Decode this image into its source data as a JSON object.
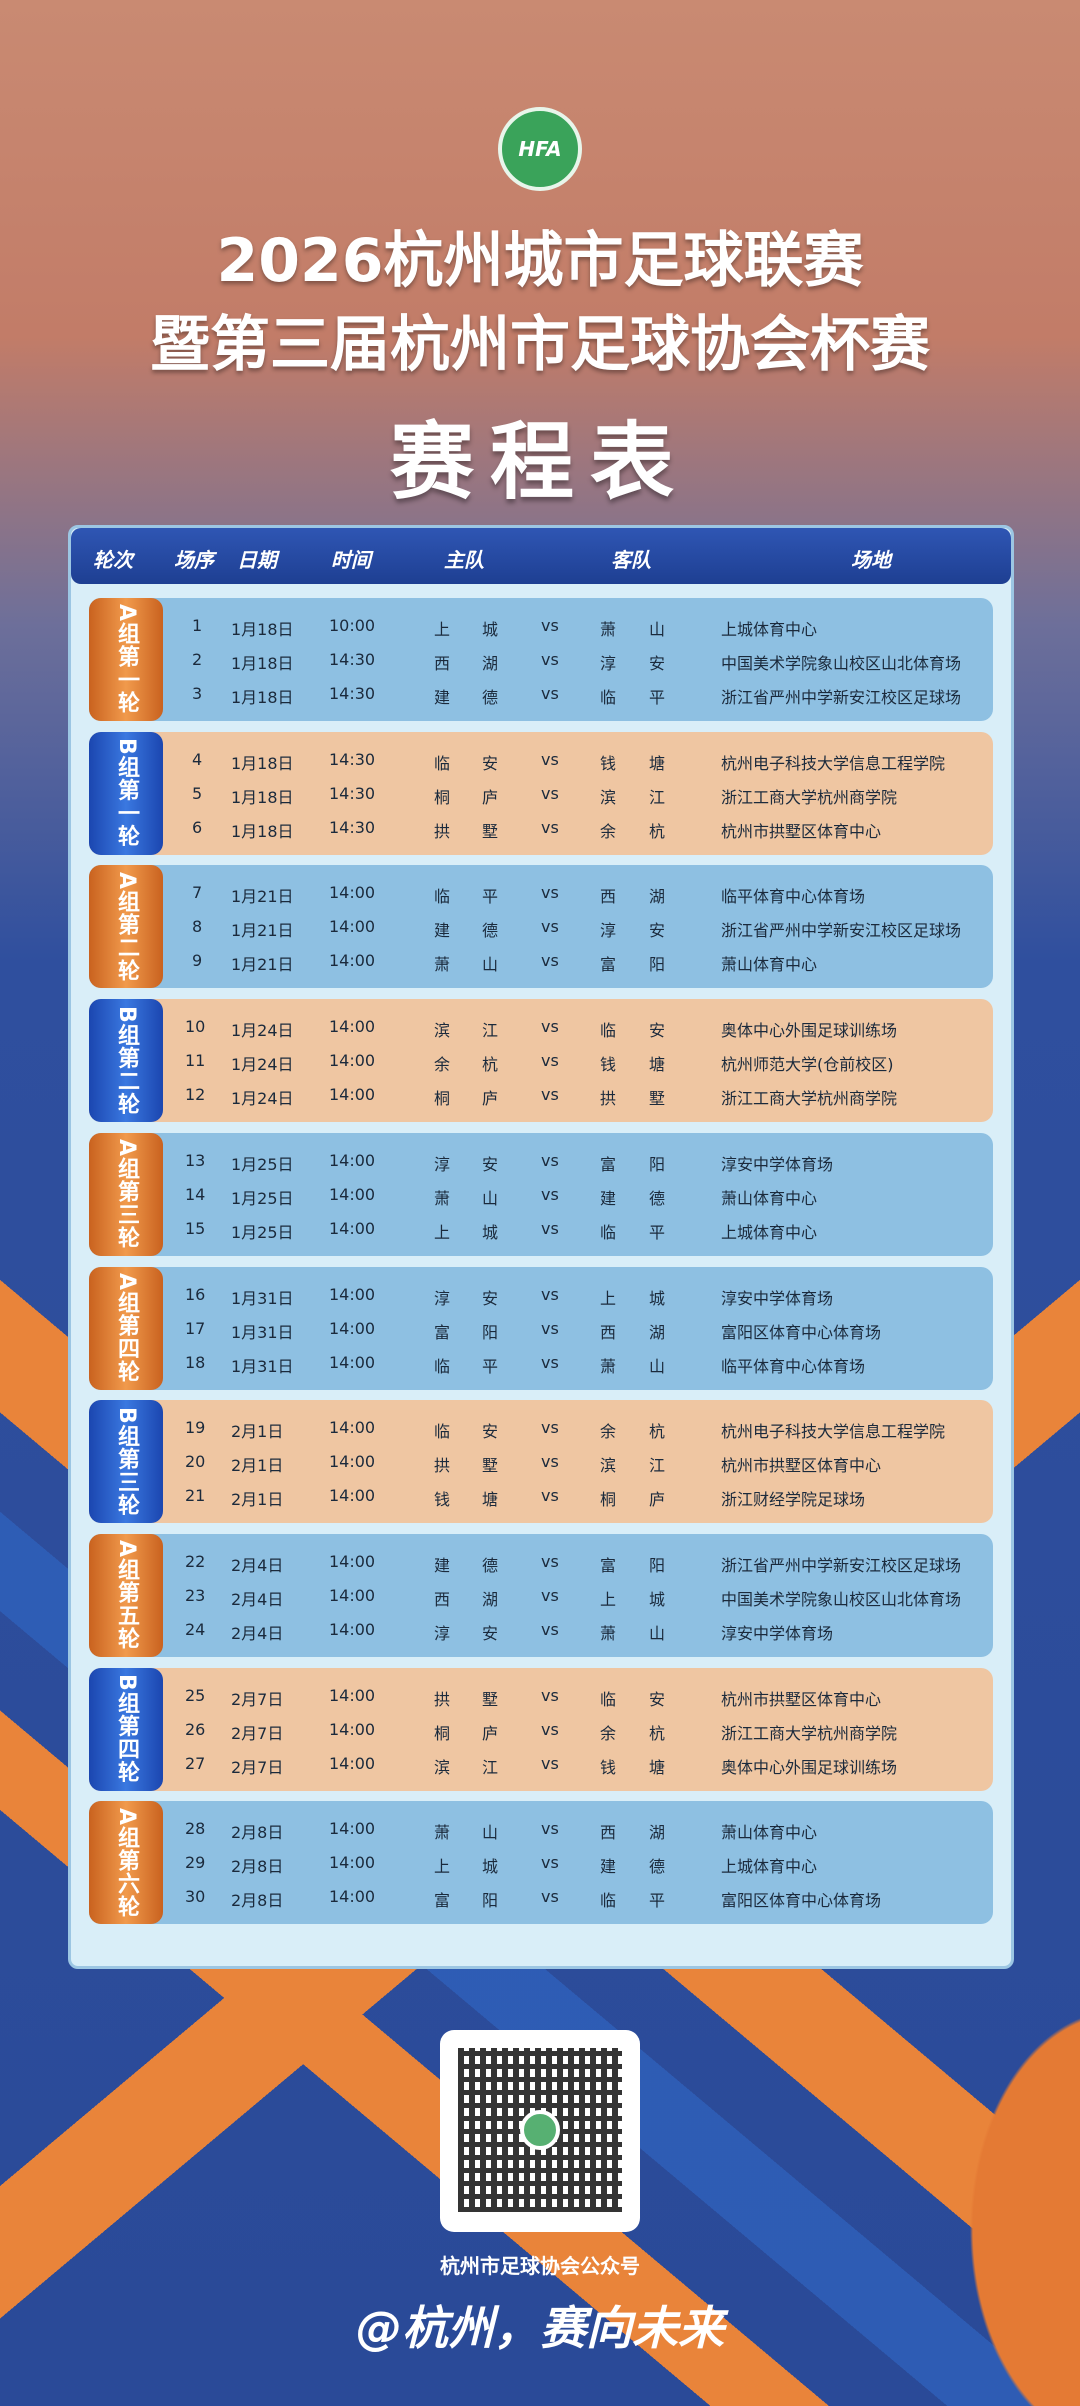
{
  "header": {
    "logo_text": "HFA",
    "title_line1": "2026杭州城市足球联赛",
    "title_line2": "暨第三届杭州市足球协会杯赛",
    "title_main": "赛程表"
  },
  "columns": [
    "轮次",
    "场序",
    "日期",
    "时间",
    "主队",
    "客队",
    "场地"
  ],
  "vs": "vs",
  "colors": {
    "groupA_tab": "#e9843a",
    "groupA_body": "#8ec0e2",
    "groupB_tab": "#2a5fcc",
    "groupB_body": "#efc6a2",
    "header_bar": "#26489f"
  },
  "rounds": [
    {
      "group": "A",
      "label": "A组第一轮",
      "matches": [
        {
          "no": "1",
          "date": "1月18日",
          "time": "10:00",
          "home": [
            "上",
            "城"
          ],
          "away": [
            "萧",
            "山"
          ],
          "venue": "上城体育中心"
        },
        {
          "no": "2",
          "date": "1月18日",
          "time": "14:30",
          "home": [
            "西",
            "湖"
          ],
          "away": [
            "淳",
            "安"
          ],
          "venue": "中国美术学院象山校区山北体育场"
        },
        {
          "no": "3",
          "date": "1月18日",
          "time": "14:30",
          "home": [
            "建",
            "德"
          ],
          "away": [
            "临",
            "平"
          ],
          "venue": "浙江省严州中学新安江校区足球场"
        }
      ]
    },
    {
      "group": "B",
      "label": "B组第一轮",
      "matches": [
        {
          "no": "4",
          "date": "1月18日",
          "time": "14:30",
          "home": [
            "临",
            "安"
          ],
          "away": [
            "钱",
            "塘"
          ],
          "venue": "杭州电子科技大学信息工程学院"
        },
        {
          "no": "5",
          "date": "1月18日",
          "time": "14:30",
          "home": [
            "桐",
            "庐"
          ],
          "away": [
            "滨",
            "江"
          ],
          "venue": "浙江工商大学杭州商学院"
        },
        {
          "no": "6",
          "date": "1月18日",
          "time": "14:30",
          "home": [
            "拱",
            "墅"
          ],
          "away": [
            "余",
            "杭"
          ],
          "venue": "杭州市拱墅区体育中心"
        }
      ]
    },
    {
      "group": "A",
      "label": "A组第二轮",
      "matches": [
        {
          "no": "7",
          "date": "1月21日",
          "time": "14:00",
          "home": [
            "临",
            "平"
          ],
          "away": [
            "西",
            "湖"
          ],
          "venue": "临平体育中心体育场"
        },
        {
          "no": "8",
          "date": "1月21日",
          "time": "14:00",
          "home": [
            "建",
            "德"
          ],
          "away": [
            "淳",
            "安"
          ],
          "venue": "浙江省严州中学新安江校区足球场"
        },
        {
          "no": "9",
          "date": "1月21日",
          "time": "14:00",
          "home": [
            "萧",
            "山"
          ],
          "away": [
            "富",
            "阳"
          ],
          "venue": "萧山体育中心"
        }
      ]
    },
    {
      "group": "B",
      "label": "B组第二轮",
      "matches": [
        {
          "no": "10",
          "date": "1月24日",
          "time": "14:00",
          "home": [
            "滨",
            "江"
          ],
          "away": [
            "临",
            "安"
          ],
          "venue": "奥体中心外围足球训练场"
        },
        {
          "no": "11",
          "date": "1月24日",
          "time": "14:00",
          "home": [
            "余",
            "杭"
          ],
          "away": [
            "钱",
            "塘"
          ],
          "venue": "杭州师范大学(仓前校区)"
        },
        {
          "no": "12",
          "date": "1月24日",
          "time": "14:00",
          "home": [
            "桐",
            "庐"
          ],
          "away": [
            "拱",
            "墅"
          ],
          "venue": "浙江工商大学杭州商学院"
        }
      ]
    },
    {
      "group": "A",
      "label": "A组第三轮",
      "matches": [
        {
          "no": "13",
          "date": "1月25日",
          "time": "14:00",
          "home": [
            "淳",
            "安"
          ],
          "away": [
            "富",
            "阳"
          ],
          "venue": "淳安中学体育场"
        },
        {
          "no": "14",
          "date": "1月25日",
          "time": "14:00",
          "home": [
            "萧",
            "山"
          ],
          "away": [
            "建",
            "德"
          ],
          "venue": "萧山体育中心"
        },
        {
          "no": "15",
          "date": "1月25日",
          "time": "14:00",
          "home": [
            "上",
            "城"
          ],
          "away": [
            "临",
            "平"
          ],
          "venue": "上城体育中心"
        }
      ]
    },
    {
      "group": "A",
      "label": "A组第四轮",
      "matches": [
        {
          "no": "16",
          "date": "1月31日",
          "time": "14:00",
          "home": [
            "淳",
            "安"
          ],
          "away": [
            "上",
            "城"
          ],
          "venue": "淳安中学体育场"
        },
        {
          "no": "17",
          "date": "1月31日",
          "time": "14:00",
          "home": [
            "富",
            "阳"
          ],
          "away": [
            "西",
            "湖"
          ],
          "venue": "富阳区体育中心体育场"
        },
        {
          "no": "18",
          "date": "1月31日",
          "time": "14:00",
          "home": [
            "临",
            "平"
          ],
          "away": [
            "萧",
            "山"
          ],
          "venue": "临平体育中心体育场"
        }
      ]
    },
    {
      "group": "B",
      "label": "B组第三轮",
      "matches": [
        {
          "no": "19",
          "date": "2月1日",
          "time": "14:00",
          "home": [
            "临",
            "安"
          ],
          "away": [
            "余",
            "杭"
          ],
          "venue": "杭州电子科技大学信息工程学院"
        },
        {
          "no": "20",
          "date": "2月1日",
          "time": "14:00",
          "home": [
            "拱",
            "墅"
          ],
          "away": [
            "滨",
            "江"
          ],
          "venue": "杭州市拱墅区体育中心"
        },
        {
          "no": "21",
          "date": "2月1日",
          "time": "14:00",
          "home": [
            "钱",
            "塘"
          ],
          "away": [
            "桐",
            "庐"
          ],
          "venue": "浙江财经学院足球场"
        }
      ]
    },
    {
      "group": "A",
      "label": "A组第五轮",
      "matches": [
        {
          "no": "22",
          "date": "2月4日",
          "time": "14:00",
          "home": [
            "建",
            "德"
          ],
          "away": [
            "富",
            "阳"
          ],
          "venue": "浙江省严州中学新安江校区足球场"
        },
        {
          "no": "23",
          "date": "2月4日",
          "time": "14:00",
          "home": [
            "西",
            "湖"
          ],
          "away": [
            "上",
            "城"
          ],
          "venue": "中国美术学院象山校区山北体育场"
        },
        {
          "no": "24",
          "date": "2月4日",
          "time": "14:00",
          "home": [
            "淳",
            "安"
          ],
          "away": [
            "萧",
            "山"
          ],
          "venue": "淳安中学体育场"
        }
      ]
    },
    {
      "group": "B",
      "label": "B组第四轮",
      "matches": [
        {
          "no": "25",
          "date": "2月7日",
          "time": "14:00",
          "home": [
            "拱",
            "墅"
          ],
          "away": [
            "临",
            "安"
          ],
          "venue": "杭州市拱墅区体育中心"
        },
        {
          "no": "26",
          "date": "2月7日",
          "time": "14:00",
          "home": [
            "桐",
            "庐"
          ],
          "away": [
            "余",
            "杭"
          ],
          "venue": "浙江工商大学杭州商学院"
        },
        {
          "no": "27",
          "date": "2月7日",
          "time": "14:00",
          "home": [
            "滨",
            "江"
          ],
          "away": [
            "钱",
            "塘"
          ],
          "venue": "奥体中心外围足球训练场"
        }
      ]
    },
    {
      "group": "A",
      "label": "A组第六轮",
      "matches": [
        {
          "no": "28",
          "date": "2月8日",
          "time": "14:00",
          "home": [
            "萧",
            "山"
          ],
          "away": [
            "西",
            "湖"
          ],
          "venue": "萧山体育中心"
        },
        {
          "no": "29",
          "date": "2月8日",
          "time": "14:00",
          "home": [
            "上",
            "城"
          ],
          "away": [
            "建",
            "德"
          ],
          "venue": "上城体育中心"
        },
        {
          "no": "30",
          "date": "2月8日",
          "time": "14:00",
          "home": [
            "富",
            "阳"
          ],
          "away": [
            "临",
            "平"
          ],
          "venue": "富阳区体育中心体育场"
        }
      ]
    }
  ],
  "footer": {
    "qr_caption": "杭州市足球协会公众号",
    "slogan": "@杭州，赛向未来"
  }
}
